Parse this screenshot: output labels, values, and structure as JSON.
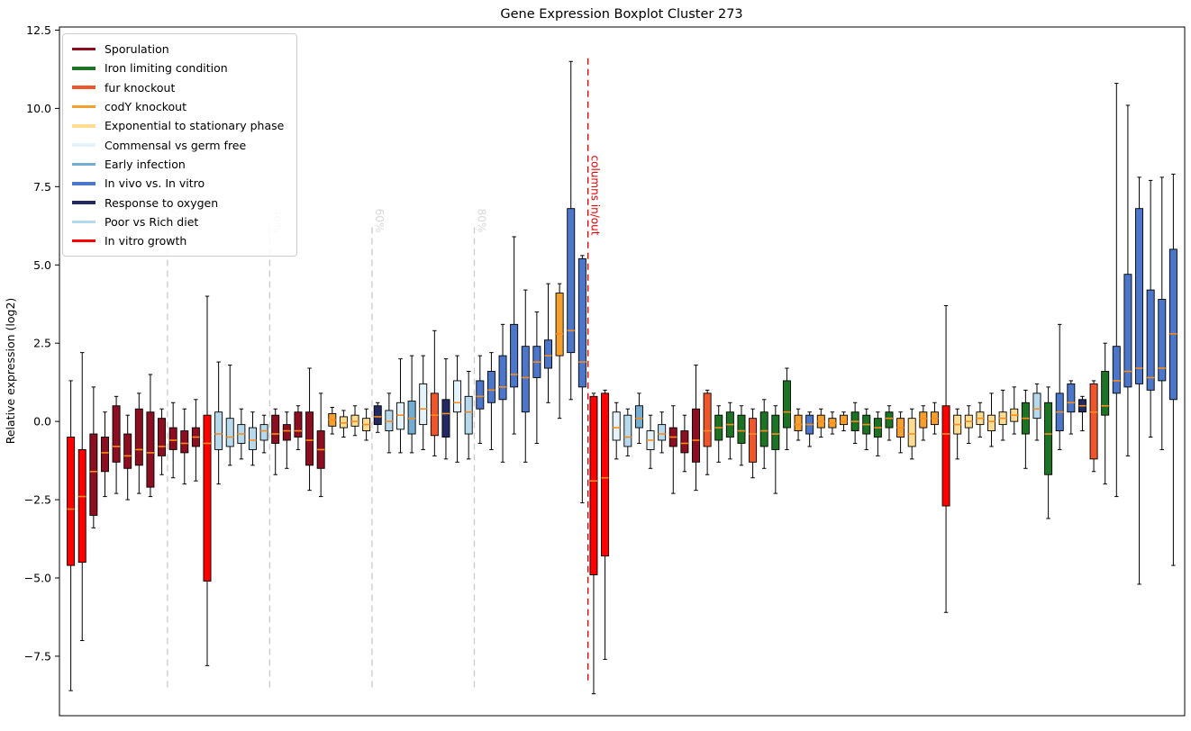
{
  "chart_data": {
    "type": "boxplot",
    "title": "Gene Expression Boxplot Cluster 273",
    "xlabel": "",
    "ylabel": "Relative expression (log2)",
    "ylim": [
      -9.4,
      12.6
    ],
    "yticks": [
      -7.5,
      -5.0,
      -2.5,
      0.0,
      2.5,
      5.0,
      7.5,
      10.0,
      12.5
    ],
    "grid": false,
    "legend_position": "upper-left",
    "median_color": "#ff8c1a",
    "legend": [
      {
        "id": "spor",
        "label": "Sporulation",
        "color": "#8b0f21"
      },
      {
        "id": "iron",
        "label": "Iron limiting condition",
        "color": "#1d7324"
      },
      {
        "id": "fur",
        "label": "fur knockout",
        "color": "#f0562b"
      },
      {
        "id": "cody",
        "label": "codY knockout",
        "color": "#f5a02e"
      },
      {
        "id": "exp",
        "label": "Exponential to stationary phase",
        "color": "#fbdc92"
      },
      {
        "id": "comm",
        "label": "Commensal vs germ free",
        "color": "#e4f3f9"
      },
      {
        "id": "early",
        "label": "Early infection",
        "color": "#74add1"
      },
      {
        "id": "vivo",
        "label": "In vivo vs. In vitro",
        "color": "#4b76c9"
      },
      {
        "id": "oxy",
        "label": "Response to oxygen",
        "color": "#232a63"
      },
      {
        "id": "diet",
        "label": "Poor vs Rich diet",
        "color": "#b7d9ee"
      },
      {
        "id": "vitro",
        "label": "In vitro growth",
        "color": "#fe0000"
      }
    ],
    "vlines": [
      {
        "at": 8.5,
        "label": "20%",
        "color": "#cccccc",
        "label_color": "#d8d8d8",
        "vmin": -8.6,
        "vmax": 6.2,
        "label_v": 6.8
      },
      {
        "at": 17.5,
        "label": "40%",
        "color": "#cccccc",
        "label_color": "#d8d8d8",
        "vmin": -8.6,
        "vmax": 6.2,
        "label_v": 6.8
      },
      {
        "at": 26.5,
        "label": "60%",
        "color": "#cccccc",
        "label_color": "#d8d8d8",
        "vmin": -8.6,
        "vmax": 6.2,
        "label_v": 6.8
      },
      {
        "at": 35.5,
        "label": "80%",
        "color": "#cccccc",
        "label_color": "#d8d8d8",
        "vmin": -8.6,
        "vmax": 6.2,
        "label_v": 6.8
      },
      {
        "at": 45.5,
        "label": "columns in/out",
        "color": "#dd0000",
        "label_color": "#dd0000",
        "vmin": -8.4,
        "vmax": 11.6,
        "label_v": 8.5
      }
    ],
    "box_format": [
      "group",
      "whisker_low",
      "q1",
      "median",
      "q3",
      "whisker_high"
    ],
    "boxes": [
      [
        "vitro",
        -8.6,
        -4.6,
        -2.8,
        -0.5,
        1.3
      ],
      [
        "vitro",
        -7.0,
        -4.5,
        -2.4,
        -0.9,
        2.2
      ],
      [
        "spor",
        -3.4,
        -3.0,
        -1.6,
        -0.4,
        1.1
      ],
      [
        "spor",
        -2.4,
        -1.6,
        -1.0,
        -0.5,
        0.3
      ],
      [
        "spor",
        -2.3,
        -1.3,
        -0.8,
        0.5,
        0.8
      ],
      [
        "spor",
        -2.5,
        -1.5,
        -1.1,
        -0.4,
        0.2
      ],
      [
        "spor",
        -2.3,
        -1.4,
        -0.9,
        0.4,
        0.9
      ],
      [
        "spor",
        -2.4,
        -2.1,
        -1.0,
        0.3,
        1.5
      ],
      [
        "spor",
        -1.7,
        -1.1,
        -0.8,
        0.1,
        0.4
      ],
      [
        "spor",
        -1.8,
        -0.9,
        -0.6,
        -0.2,
        0.6
      ],
      [
        "spor",
        -2.0,
        -1.0,
        -0.7,
        -0.3,
        0.4
      ],
      [
        "spor",
        -1.9,
        -0.8,
        -0.5,
        -0.2,
        0.7
      ],
      [
        "vitro",
        -7.8,
        -5.1,
        -0.7,
        0.2,
        4.0
      ],
      [
        "diet",
        -2.0,
        -0.9,
        -0.4,
        0.3,
        1.9
      ],
      [
        "diet",
        -1.4,
        -0.8,
        -0.5,
        0.1,
        1.8
      ],
      [
        "diet",
        -1.2,
        -0.7,
        -0.4,
        -0.1,
        0.4
      ],
      [
        "diet",
        -1.4,
        -0.9,
        -0.6,
        -0.2,
        0.3
      ],
      [
        "diet",
        -1.0,
        -0.6,
        -0.3,
        -0.1,
        0.2
      ],
      [
        "spor",
        -1.7,
        -0.7,
        -0.4,
        0.2,
        0.4
      ],
      [
        "spor",
        -1.5,
        -0.6,
        -0.3,
        -0.1,
        0.3
      ],
      [
        "spor",
        -0.9,
        -0.5,
        -0.3,
        0.3,
        0.5
      ],
      [
        "spor",
        -2.2,
        -1.4,
        -0.6,
        0.3,
        1.7
      ],
      [
        "spor",
        -2.4,
        -1.5,
        -0.9,
        -0.3,
        0.9
      ],
      [
        "cody",
        -0.4,
        -0.15,
        0.05,
        0.25,
        0.45
      ],
      [
        "exp",
        -0.5,
        -0.2,
        -0.05,
        0.15,
        0.35
      ],
      [
        "exp",
        -0.45,
        -0.15,
        0.0,
        0.2,
        0.5
      ],
      [
        "exp",
        -0.6,
        -0.3,
        -0.1,
        0.1,
        0.4
      ],
      [
        "oxy",
        -0.35,
        -0.1,
        0.15,
        0.5,
        0.6
      ],
      [
        "diet",
        -1.0,
        -0.3,
        0.0,
        0.35,
        0.9
      ],
      [
        "comm",
        -1.0,
        -0.25,
        0.2,
        0.6,
        2.0
      ],
      [
        "early",
        -1.0,
        -0.4,
        0.1,
        0.65,
        2.1
      ],
      [
        "comm",
        -0.9,
        -0.1,
        0.4,
        1.2,
        2.1
      ],
      [
        "fur",
        -1.1,
        -0.45,
        0.2,
        0.9,
        2.9
      ],
      [
        "oxy",
        -1.2,
        -0.5,
        0.25,
        0.7,
        2.0
      ],
      [
        "comm",
        -1.3,
        0.3,
        0.6,
        1.3,
        2.1
      ],
      [
        "diet",
        -1.2,
        -0.4,
        0.3,
        0.8,
        1.6
      ],
      [
        "vivo",
        -0.7,
        0.4,
        0.8,
        1.3,
        2.1
      ],
      [
        "vivo",
        -0.9,
        0.6,
        1.0,
        1.6,
        2.2
      ],
      [
        "vivo",
        -1.3,
        0.7,
        1.1,
        2.1,
        3.1
      ],
      [
        "vivo",
        -0.4,
        1.1,
        1.5,
        3.1,
        5.9
      ],
      [
        "vivo",
        -1.3,
        0.3,
        1.4,
        2.4,
        4.2
      ],
      [
        "vivo",
        -0.7,
        1.4,
        1.9,
        2.4,
        3.5
      ],
      [
        "vivo",
        0.6,
        1.7,
        2.1,
        2.6,
        4.4
      ],
      [
        "cody",
        0.1,
        2.1,
        2.8,
        4.1,
        4.4
      ],
      [
        "vivo",
        0.7,
        2.2,
        2.9,
        6.8,
        11.5
      ],
      [
        "vivo",
        -2.6,
        1.1,
        1.9,
        5.2,
        5.3
      ],
      [
        "vitro",
        -8.7,
        -4.9,
        -1.9,
        0.8,
        0.9
      ],
      [
        "vitro",
        -7.6,
        -4.3,
        -1.8,
        0.9,
        1.0
      ],
      [
        "comm",
        -1.2,
        -0.6,
        -0.2,
        0.3,
        0.6
      ],
      [
        "diet",
        -1.1,
        -0.8,
        -0.5,
        0.2,
        0.4
      ],
      [
        "early",
        -0.7,
        -0.2,
        0.1,
        0.5,
        0.9
      ],
      [
        "comm",
        -1.5,
        -0.9,
        -0.6,
        -0.3,
        0.2
      ],
      [
        "diet",
        -1.0,
        -0.6,
        -0.4,
        -0.1,
        0.3
      ],
      [
        "spor",
        -2.3,
        -0.8,
        -0.5,
        -0.2,
        0.5
      ],
      [
        "spor",
        -1.6,
        -1.0,
        -0.7,
        -0.3,
        0.2
      ],
      [
        "spor",
        -2.2,
        -1.3,
        -0.6,
        0.4,
        1.8
      ],
      [
        "fur",
        -1.7,
        -0.8,
        -0.3,
        0.9,
        1.0
      ],
      [
        "iron",
        -1.3,
        -0.6,
        -0.2,
        0.2,
        0.5
      ],
      [
        "iron",
        -1.2,
        -0.5,
        -0.1,
        0.3,
        0.6
      ],
      [
        "iron",
        -1.4,
        -0.7,
        -0.3,
        0.2,
        0.5
      ],
      [
        "fur",
        -1.8,
        -1.3,
        -0.4,
        0.1,
        0.4
      ],
      [
        "iron",
        -1.5,
        -0.8,
        -0.3,
        0.3,
        0.7
      ],
      [
        "iron",
        -2.3,
        -0.9,
        -0.4,
        0.2,
        0.5
      ],
      [
        "iron",
        -0.9,
        -0.2,
        0.3,
        1.3,
        1.7
      ],
      [
        "cody",
        -0.6,
        -0.3,
        -0.1,
        0.2,
        0.4
      ],
      [
        "vivo",
        -0.8,
        -0.4,
        -0.1,
        0.2,
        0.3
      ],
      [
        "cody",
        -0.5,
        -0.2,
        0.0,
        0.2,
        0.4
      ],
      [
        "cody",
        -0.4,
        -0.2,
        -0.05,
        0.1,
        0.3
      ],
      [
        "cody",
        -0.3,
        -0.1,
        0.0,
        0.2,
        0.3
      ],
      [
        "iron",
        -0.7,
        -0.3,
        0.0,
        0.3,
        0.6
      ],
      [
        "iron",
        -0.9,
        -0.4,
        -0.1,
        0.2,
        0.4
      ],
      [
        "iron",
        -1.1,
        -0.5,
        -0.2,
        0.1,
        0.3
      ],
      [
        "iron",
        -0.6,
        -0.2,
        0.1,
        0.3,
        0.5
      ],
      [
        "cody",
        -1.0,
        -0.5,
        -0.2,
        0.1,
        0.3
      ],
      [
        "exp",
        -1.2,
        -0.8,
        -0.4,
        0.1,
        0.4
      ],
      [
        "cody",
        -0.6,
        -0.2,
        0.1,
        0.3,
        0.5
      ],
      [
        "cody",
        -0.4,
        -0.1,
        0.1,
        0.3,
        0.6
      ],
      [
        "vitro",
        -6.1,
        -2.7,
        -0.4,
        0.5,
        3.7
      ],
      [
        "exp",
        -1.2,
        -0.4,
        -0.1,
        0.2,
        0.4
      ],
      [
        "exp",
        -0.7,
        -0.2,
        0.0,
        0.2,
        0.5
      ],
      [
        "exp",
        -0.5,
        -0.1,
        0.1,
        0.3,
        0.6
      ],
      [
        "exp",
        -0.8,
        -0.3,
        0.0,
        0.2,
        0.9
      ],
      [
        "exp",
        -0.6,
        -0.1,
        0.1,
        0.3,
        1.0
      ],
      [
        "exp",
        -0.4,
        0.0,
        0.2,
        0.4,
        1.1
      ],
      [
        "iron",
        -1.5,
        -0.4,
        0.1,
        0.6,
        1.0
      ],
      [
        "diet",
        -0.6,
        0.1,
        0.4,
        0.9,
        1.2
      ],
      [
        "iron",
        -3.1,
        -1.7,
        -0.4,
        0.6,
        1.1
      ],
      [
        "vivo",
        -0.9,
        -0.3,
        0.3,
        0.9,
        3.1
      ],
      [
        "vivo",
        -0.4,
        0.3,
        0.6,
        1.2,
        1.3
      ],
      [
        "oxy",
        -0.3,
        0.3,
        0.5,
        0.7,
        0.8
      ],
      [
        "fur",
        -1.6,
        -1.2,
        0.3,
        1.2,
        1.3
      ],
      [
        "iron",
        -2.0,
        0.2,
        0.5,
        1.6,
        2.5
      ],
      [
        "vivo",
        -2.4,
        0.9,
        1.3,
        2.4,
        10.8
      ],
      [
        "vivo",
        -1.1,
        1.1,
        1.6,
        4.7,
        10.1
      ],
      [
        "vivo",
        -5.2,
        1.2,
        1.7,
        6.8,
        7.8
      ],
      [
        "vivo",
        -0.5,
        1.0,
        1.4,
        4.2,
        7.7
      ],
      [
        "vivo",
        -0.9,
        1.3,
        1.7,
        3.9,
        7.8
      ],
      [
        "vivo",
        -4.6,
        0.7,
        2.8,
        5.5,
        7.9
      ]
    ]
  }
}
